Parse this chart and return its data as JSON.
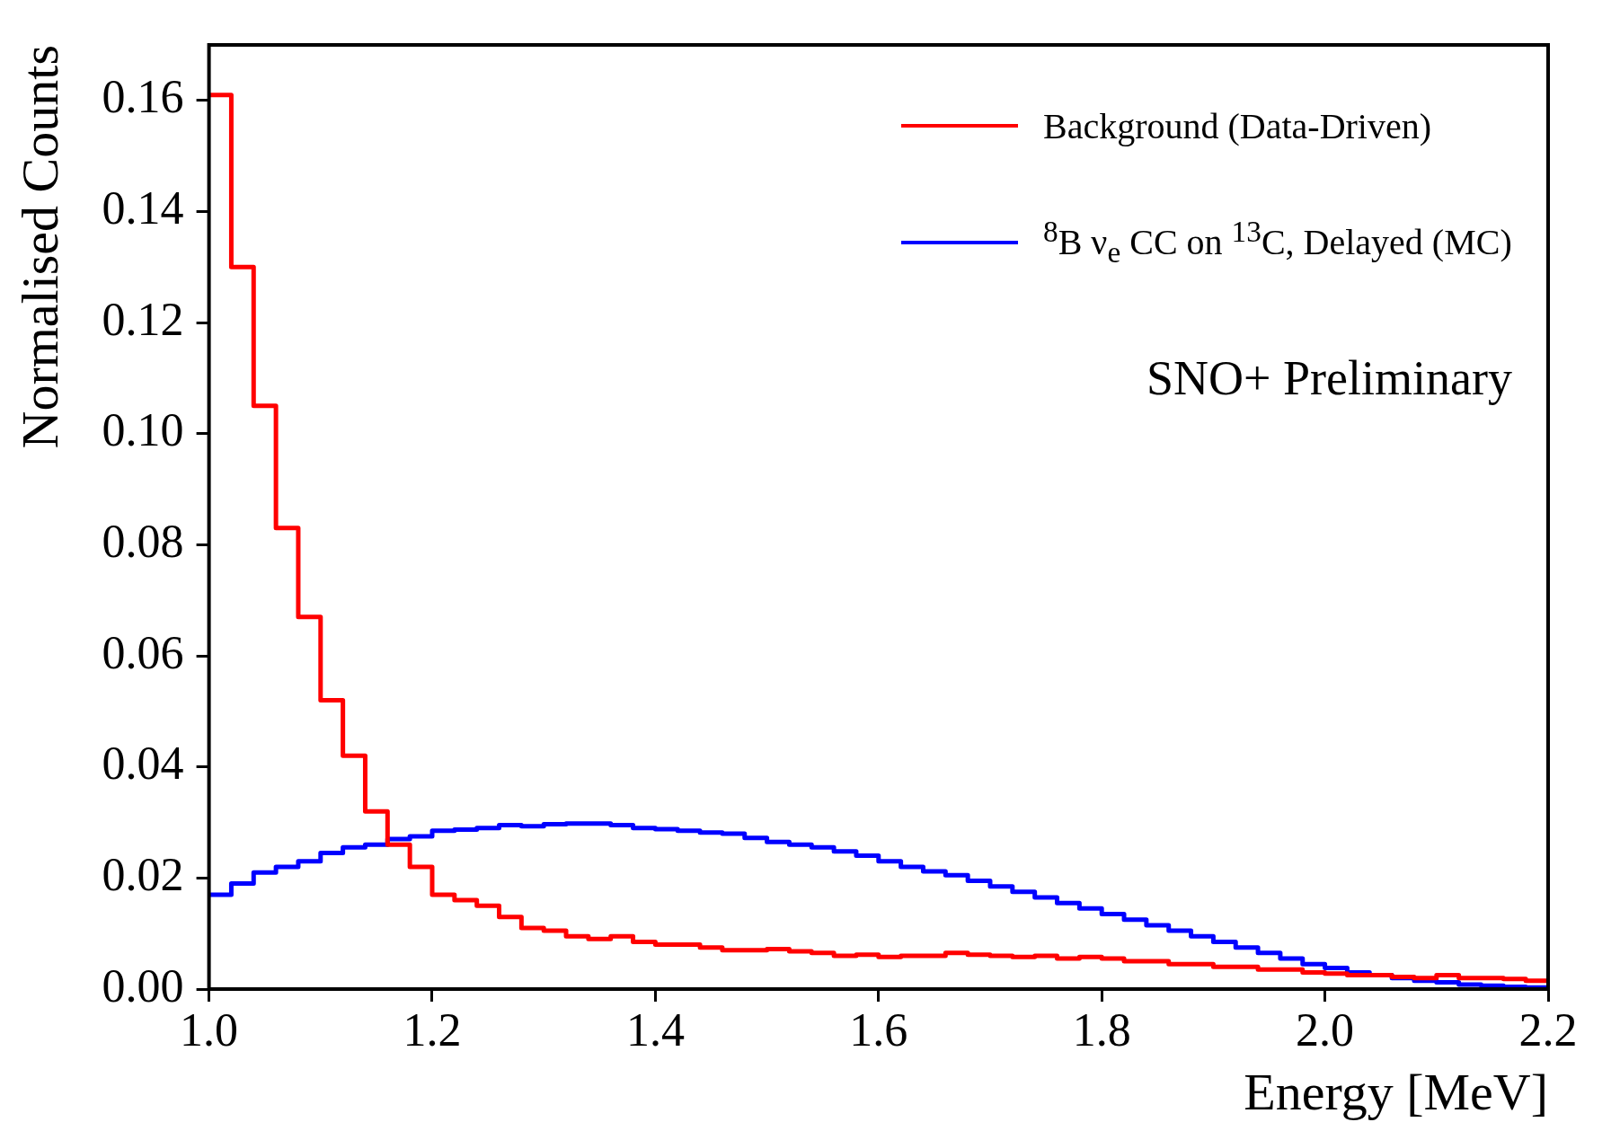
{
  "chart_data": {
    "type": "histogram",
    "xlabel": "Energy [MeV]",
    "ylabel": "Normalised Counts",
    "bins": [
      1.0,
      1.02,
      1.04,
      1.06,
      1.08,
      1.1,
      1.12,
      1.14,
      1.16,
      1.18,
      1.2,
      1.22,
      1.24,
      1.26,
      1.28,
      1.3,
      1.32,
      1.34,
      1.36,
      1.38,
      1.4,
      1.42,
      1.44,
      1.46,
      1.48,
      1.5,
      1.52,
      1.54,
      1.56,
      1.58,
      1.6,
      1.62,
      1.64,
      1.66,
      1.68,
      1.7,
      1.72,
      1.74,
      1.76,
      1.78,
      1.8,
      1.82,
      1.84,
      1.86,
      1.88,
      1.9,
      1.92,
      1.94,
      1.96,
      1.98,
      2.0,
      2.02,
      2.04,
      2.06,
      2.08,
      2.1,
      2.12,
      2.14,
      2.16,
      2.18,
      2.2
    ],
    "series": [
      {
        "name": "Background (Data-Driven)",
        "color": "#ff0000",
        "values": [
          0.161,
          0.13,
          0.105,
          0.083,
          0.067,
          0.052,
          0.042,
          0.032,
          0.026,
          0.022,
          0.017,
          0.016,
          0.015,
          0.013,
          0.011,
          0.0105,
          0.0095,
          0.009,
          0.0095,
          0.0085,
          0.008,
          0.008,
          0.0075,
          0.007,
          0.007,
          0.0072,
          0.0068,
          0.0065,
          0.006,
          0.0062,
          0.0058,
          0.006,
          0.006,
          0.0065,
          0.0062,
          0.006,
          0.0058,
          0.006,
          0.0055,
          0.0058,
          0.0055,
          0.005,
          0.005,
          0.0045,
          0.0045,
          0.004,
          0.004,
          0.0035,
          0.0035,
          0.003,
          0.0028,
          0.0025,
          0.0025,
          0.0022,
          0.002,
          0.0025,
          0.002,
          0.002,
          0.0018,
          0.0015
        ]
      },
      {
        "name": "$^{8}$B ν$_{e}$ CC on $^{13}$C, Delayed (MC)",
        "color": "#0000ff",
        "values": [
          0.017,
          0.019,
          0.021,
          0.022,
          0.023,
          0.0245,
          0.0255,
          0.026,
          0.027,
          0.0275,
          0.0285,
          0.0287,
          0.029,
          0.0295,
          0.0293,
          0.0297,
          0.0298,
          0.0298,
          0.0295,
          0.029,
          0.0288,
          0.0285,
          0.0282,
          0.028,
          0.0272,
          0.0265,
          0.026,
          0.0255,
          0.0248,
          0.024,
          0.023,
          0.022,
          0.0212,
          0.0205,
          0.0195,
          0.0185,
          0.0175,
          0.0165,
          0.0155,
          0.0145,
          0.0135,
          0.0125,
          0.0115,
          0.0105,
          0.0095,
          0.0085,
          0.0075,
          0.0065,
          0.0055,
          0.0045,
          0.0038,
          0.003,
          0.0025,
          0.002,
          0.0015,
          0.0012,
          0.0008,
          0.0006,
          0.0004,
          0.0003
        ]
      }
    ],
    "xlim": [
      1.0,
      2.2
    ],
    "xticks": [
      {
        "value": 1.0,
        "label": "1.0"
      },
      {
        "value": 1.2,
        "label": "1.2"
      },
      {
        "value": 1.4,
        "label": "1.4"
      },
      {
        "value": 1.6,
        "label": "1.6"
      },
      {
        "value": 1.8,
        "label": "1.8"
      },
      {
        "value": 2.0,
        "label": "2.0"
      },
      {
        "value": 2.2,
        "label": "2.2"
      }
    ],
    "ylim": [
      0,
      0.17
    ],
    "yticks": [
      {
        "value": 0,
        "label": "0.00"
      },
      {
        "value": 0.02,
        "label": "0.02"
      },
      {
        "value": 0.04,
        "label": "0.04"
      },
      {
        "value": 0.06,
        "label": "0.06"
      },
      {
        "value": 0.08,
        "label": "0.08"
      },
      {
        "value": 0.1,
        "label": "0.10"
      },
      {
        "value": 0.12,
        "label": "0.12"
      },
      {
        "value": 0.14,
        "label": "0.14"
      },
      {
        "value": 0.16,
        "label": "0.16"
      }
    ],
    "grid": false,
    "legend": "top right",
    "annotations": [
      "SNO+ Preliminary"
    ]
  }
}
